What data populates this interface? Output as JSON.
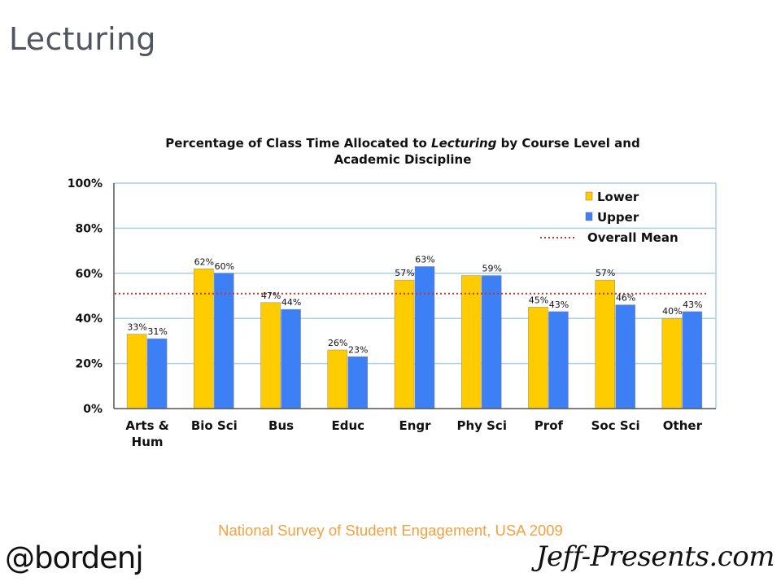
{
  "slide": {
    "title": "Lecturing",
    "source": "National Survey of Student Engagement, USA 2009",
    "handle": "@bordenj",
    "brand": "Jeff-Presents.com"
  },
  "chart_data": {
    "type": "bar",
    "title_parts": [
      {
        "text": "Percentage of Class Time Allocated to ",
        "italic": false
      },
      {
        "text": "Lecturing",
        "italic": true
      },
      {
        "text": " by Course Level and",
        "italic": false
      }
    ],
    "title_line2": "Academic Discipline",
    "categories": [
      [
        "Arts &",
        "Hum"
      ],
      [
        "Bio Sci"
      ],
      [
        "Bus"
      ],
      [
        "Educ"
      ],
      [
        "Engr"
      ],
      [
        "Phy Sci"
      ],
      [
        "Prof"
      ],
      [
        "Soc Sci"
      ],
      [
        "Other"
      ]
    ],
    "series": [
      {
        "name": "Lower",
        "color": "#ffcc00",
        "values": [
          33,
          62,
          47,
          26,
          57,
          59,
          45,
          57,
          40
        ],
        "labels": [
          "33%",
          "62%",
          "47%",
          "26%",
          "57%",
          "",
          "45%",
          "57%",
          "40%"
        ]
      },
      {
        "name": "Upper",
        "color": "#3d7ff5",
        "values": [
          31,
          60,
          44,
          23,
          63,
          59,
          43,
          46,
          43
        ],
        "labels": [
          "31%",
          "60%",
          "44%",
          "23%",
          "63%",
          "59%",
          "43%",
          "46%",
          "43%"
        ]
      }
    ],
    "mean": {
      "name": "Overall Mean",
      "value": 51,
      "color": "#c0392b"
    },
    "ylim": [
      0,
      100
    ],
    "yticks": [
      "0%",
      "20%",
      "40%",
      "60%",
      "80%",
      "100%"
    ],
    "ytick_values": [
      0,
      20,
      40,
      60,
      80,
      100
    ],
    "grid": true,
    "legend_position": "top-right"
  }
}
